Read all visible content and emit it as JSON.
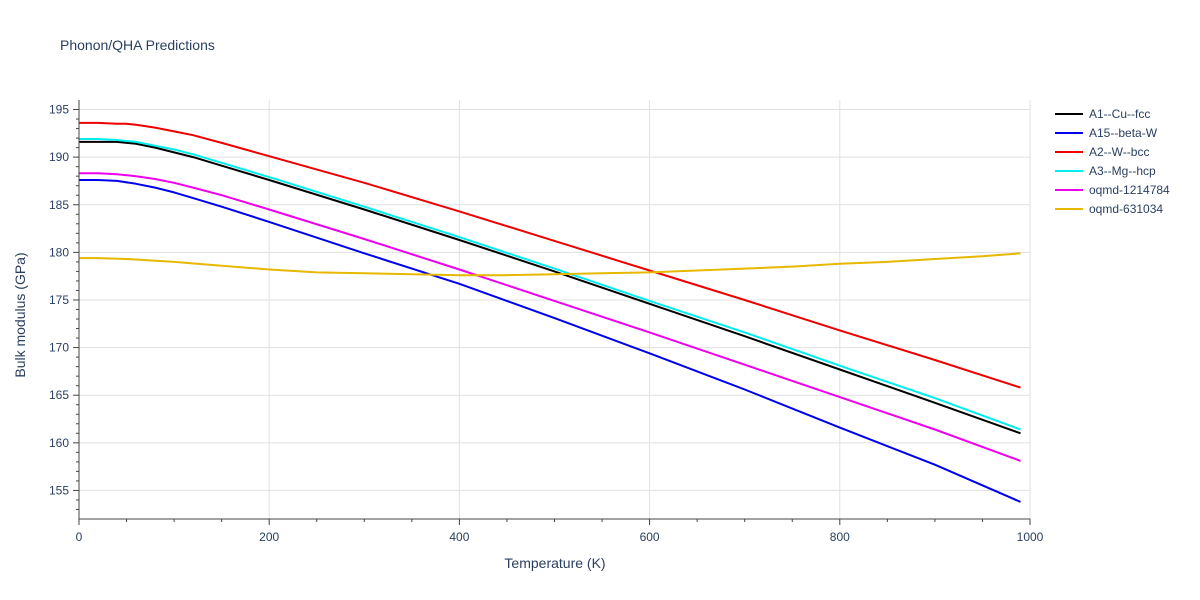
{
  "chart_data": {
    "type": "line",
    "title": "Phonon/QHA Predictions",
    "xlabel": "Temperature (K)",
    "ylabel": "Bulk modulus (GPa)",
    "xlim": [
      0,
      1000
    ],
    "ylim": [
      152,
      196
    ],
    "xticks": [
      0,
      200,
      400,
      600,
      800,
      1000
    ],
    "yticks": [
      155,
      160,
      165,
      170,
      175,
      180,
      185,
      190,
      195
    ],
    "grid": true,
    "legend_position": "top-right",
    "series": [
      {
        "name": "A1--Cu--fcc",
        "color": "#000000",
        "x": [
          0,
          20,
          40,
          60,
          80,
          100,
          120,
          150,
          200,
          300,
          400,
          500,
          600,
          700,
          800,
          900,
          990
        ],
        "y": [
          191.6,
          191.6,
          191.6,
          191.4,
          191.0,
          190.5,
          190.0,
          189.1,
          187.6,
          184.5,
          181.3,
          178.0,
          174.6,
          171.2,
          167.7,
          164.2,
          161.0
        ]
      },
      {
        "name": "A15--beta-W",
        "color": "#0000ee",
        "x": [
          0,
          20,
          40,
          60,
          80,
          100,
          120,
          150,
          200,
          300,
          400,
          500,
          600,
          700,
          800,
          900,
          990
        ],
        "y": [
          187.6,
          187.6,
          187.5,
          187.2,
          186.8,
          186.3,
          185.7,
          184.8,
          183.2,
          179.9,
          176.7,
          173.1,
          169.4,
          165.6,
          161.6,
          157.7,
          153.8
        ]
      },
      {
        "name": "A2--W--bcc",
        "color": "#ee0000",
        "x": [
          0,
          20,
          40,
          50,
          60,
          80,
          100,
          120,
          150,
          200,
          300,
          400,
          500,
          600,
          700,
          800,
          900,
          990
        ],
        "y": [
          193.6,
          193.6,
          193.5,
          193.5,
          193.4,
          193.1,
          192.7,
          192.3,
          191.5,
          190.1,
          187.3,
          184.3,
          181.2,
          178.1,
          175.0,
          171.8,
          168.7,
          165.8
        ]
      },
      {
        "name": "A3--Mg--hcp",
        "color": "#00eeee",
        "x": [
          0,
          20,
          40,
          60,
          80,
          100,
          120,
          150,
          200,
          300,
          400,
          500,
          600,
          700,
          800,
          900,
          990
        ],
        "y": [
          191.9,
          191.9,
          191.8,
          191.6,
          191.2,
          190.8,
          190.3,
          189.4,
          187.9,
          184.8,
          181.6,
          178.3,
          174.9,
          171.6,
          168.1,
          164.7,
          161.4
        ]
      },
      {
        "name": "oqmd-1214784",
        "color": "#ee00ee",
        "x": [
          0,
          20,
          40,
          60,
          80,
          100,
          120,
          150,
          200,
          300,
          400,
          500,
          600,
          700,
          800,
          900,
          990
        ],
        "y": [
          188.3,
          188.3,
          188.2,
          188.0,
          187.7,
          187.3,
          186.8,
          186.0,
          184.5,
          181.4,
          178.2,
          174.9,
          171.6,
          168.2,
          164.8,
          161.4,
          158.1
        ]
      },
      {
        "name": "oqmd-631034",
        "color": "#e6b800",
        "x": [
          0,
          20,
          50,
          100,
          150,
          200,
          250,
          300,
          350,
          400,
          450,
          500,
          550,
          600,
          650,
          700,
          750,
          800,
          850,
          900,
          950,
          990
        ],
        "y": [
          179.4,
          179.4,
          179.3,
          179.0,
          178.6,
          178.2,
          177.9,
          177.8,
          177.7,
          177.6,
          177.6,
          177.7,
          177.8,
          177.9,
          178.1,
          178.3,
          178.5,
          178.8,
          179.0,
          179.3,
          179.6,
          179.9
        ]
      }
    ]
  }
}
